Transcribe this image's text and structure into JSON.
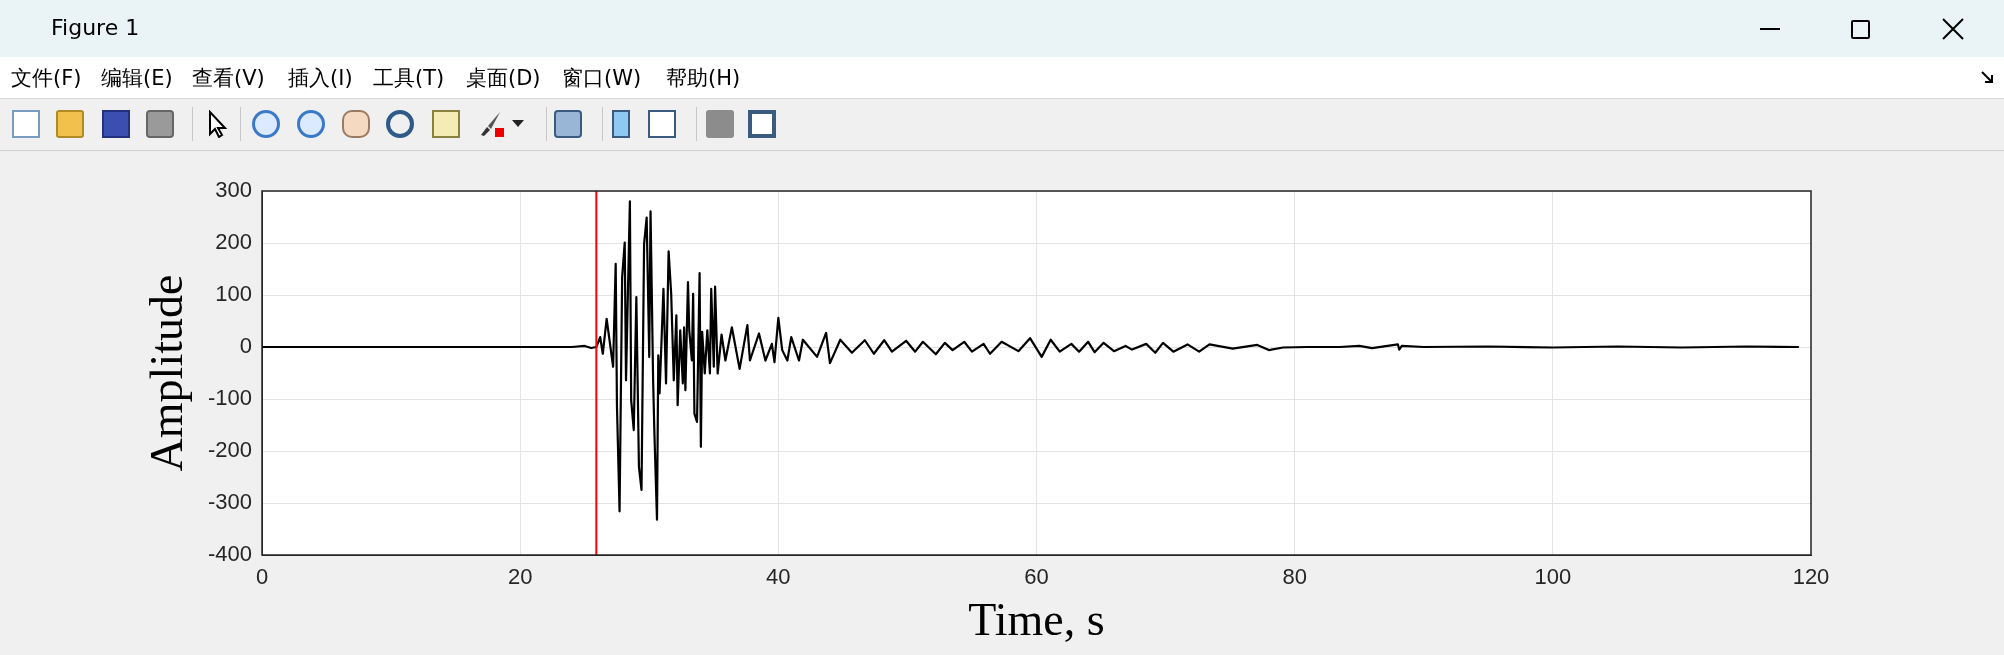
{
  "chart_data": {
    "type": "line",
    "annotations": [
      "Figure 1",
      "文件(F)",
      "编辑(E)",
      "查看(V)",
      "插入(I)",
      "工具(T)",
      "桌面(D)",
      "窗口(W)",
      "帮助(H)"
    ],
    "xlabel": "Time, s",
    "ylabel": "Amplitude",
    "color": "#000000",
    "x": [
      0,
      24.0,
      25.0,
      25.5,
      25.9,
      26.2,
      26.4,
      26.7,
      27.2,
      27.4,
      27.5,
      27.7,
      27.9,
      28.1,
      28.2,
      28.5,
      28.6,
      28.8,
      29.0,
      29.2,
      29.4,
      29.6,
      29.8,
      30.0,
      30.1,
      30.3,
      30.4,
      30.6,
      30.7,
      30.8,
      31.1,
      31.3,
      31.5,
      31.7,
      31.9,
      32.1,
      32.2,
      32.4,
      32.6,
      32.7,
      32.8,
      33.0,
      33.1,
      33.3,
      33.4,
      33.5,
      33.7,
      33.9,
      34.0,
      34.1,
      34.3,
      34.5,
      34.7,
      34.8,
      35.0,
      35.1,
      35.3,
      35.6,
      35.9,
      36.4,
      37.0,
      37.6,
      37.8,
      38.5,
      39.0,
      39.5,
      39.7,
      40.0,
      40.3,
      40.7,
      41.0,
      41.6,
      41.9,
      43.0,
      43.7,
      44.0,
      44.8,
      45.7,
      46.7,
      47.4,
      48.2,
      48.8,
      49.9,
      50.6,
      51.2,
      52.2,
      52.9,
      53.5,
      54.4,
      55.0,
      55.9,
      56.4,
      57.3,
      58.6,
      59.5,
      60.4,
      61.1,
      61.8,
      62.7,
      63.3,
      64.0,
      64.5,
      65.2,
      66.0,
      66.9,
      67.4,
      68.5,
      69.2,
      69.8,
      70.6,
      71.7,
      72.6,
      73.4,
      75.2,
      77.1,
      78.0,
      79.1,
      81.0,
      83.5,
      85.0,
      86.0,
      88.0,
      88.1,
      88.3,
      90.0,
      95.0,
      100.0,
      105.0,
      110.0,
      115.0,
      119.0
    ],
    "values": [
      0,
      0,
      2,
      -2,
      0,
      19,
      -13,
      54,
      -38,
      160,
      -115,
      -316,
      134,
      201,
      -64,
      280,
      -102,
      -160,
      96,
      -230,
      -275,
      198,
      249,
      -19,
      261,
      -64,
      -166,
      -332,
      -16,
      -89,
      112,
      -70,
      184,
      102,
      -64,
      61,
      -112,
      32,
      -70,
      38,
      -83,
      125,
      32,
      -26,
      102,
      -128,
      -144,
      142,
      -192,
      29,
      -51,
      32,
      -51,
      112,
      -38,
      116,
      -51,
      24,
      -26,
      38,
      -42,
      42,
      -26,
      26,
      -26,
      6,
      -29,
      56,
      -6,
      -26,
      19,
      -26,
      14,
      -19,
      27,
      -31,
      14,
      -11,
      13,
      -13,
      13,
      -9,
      12,
      -9,
      10,
      -14,
      8,
      -6,
      10,
      -9,
      6,
      -13,
      10,
      -8,
      17,
      -19,
      14,
      -9,
      6,
      -9,
      10,
      -10,
      8,
      -8,
      2,
      -5,
      6,
      -11,
      8,
      -9,
      5,
      -9,
      5,
      -3,
      4,
      -6,
      -1,
      0,
      0,
      2,
      -2,
      5,
      -5,
      2,
      0,
      1,
      -1,
      1,
      -1,
      1,
      0
    ],
    "xlim": [
      0,
      120
    ],
    "ylim": [
      -400,
      300
    ],
    "xticks": [
      0,
      20,
      40,
      60,
      80,
      100,
      120
    ],
    "yticks": [
      -400,
      -300,
      -200,
      -100,
      0,
      100,
      200,
      300
    ],
    "grid": true,
    "ref_lines": [
      {
        "axis": "x",
        "value": 25.9,
        "color": "#ff0000"
      }
    ]
  }
}
